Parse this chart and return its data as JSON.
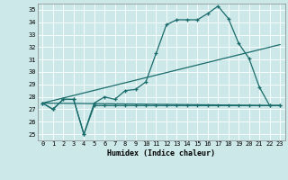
{
  "xlabel": "Humidex (Indice chaleur)",
  "bg_color": "#cce8e8",
  "grid_color": "#aacccc",
  "line_color": "#1a6b6b",
  "xlim": [
    -0.5,
    23.5
  ],
  "ylim": [
    24.5,
    35.5
  ],
  "yticks": [
    25,
    26,
    27,
    28,
    29,
    30,
    31,
    32,
    33,
    34,
    35
  ],
  "xticks": [
    0,
    1,
    2,
    3,
    4,
    5,
    6,
    7,
    8,
    9,
    10,
    11,
    12,
    13,
    14,
    15,
    16,
    17,
    18,
    19,
    20,
    21,
    22,
    23
  ],
  "series1_x": [
    0,
    1,
    2,
    3,
    4,
    5,
    6,
    7,
    8,
    9,
    10,
    11,
    12,
    13,
    14,
    15,
    16,
    17,
    18,
    19,
    20,
    21,
    22,
    23
  ],
  "series1_y": [
    27.5,
    27.0,
    27.8,
    27.8,
    25.0,
    27.5,
    28.0,
    27.8,
    28.5,
    28.6,
    29.2,
    31.5,
    33.8,
    34.2,
    34.2,
    34.2,
    34.7,
    35.3,
    34.3,
    32.3,
    31.1,
    28.8,
    27.3,
    27.3
  ],
  "series2_x": [
    0,
    1,
    2,
    3,
    4,
    5,
    6,
    7,
    8,
    9,
    10,
    11,
    12,
    13,
    14,
    15,
    16,
    17,
    18,
    19,
    20,
    21,
    22,
    23
  ],
  "series2_y": [
    27.5,
    27.0,
    27.8,
    27.8,
    25.0,
    27.3,
    27.3,
    27.3,
    27.3,
    27.3,
    27.3,
    27.3,
    27.3,
    27.3,
    27.3,
    27.3,
    27.3,
    27.3,
    27.3,
    27.3,
    27.3,
    27.3,
    27.3,
    27.3
  ],
  "series3_x": [
    0,
    20
  ],
  "series3_y": [
    27.5,
    31.1
  ],
  "series4_x": [
    0,
    20
  ],
  "series4_y": [
    27.5,
    31.1
  ]
}
